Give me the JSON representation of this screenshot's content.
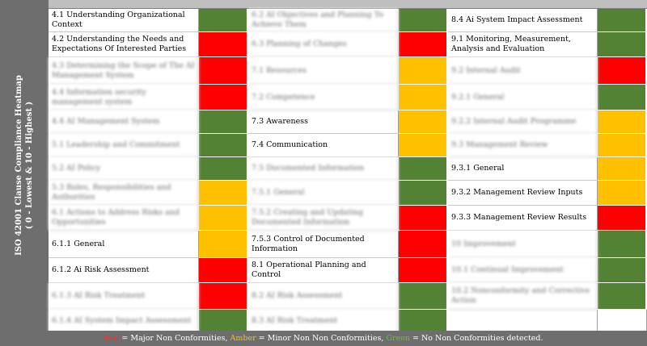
{
  "sidebar": {
    "title_line1": "ISO 42001 Clause Compliance Heatmap",
    "title_line2": "( 0 - Lowest & 10 - Highest )"
  },
  "colors": {
    "green": "#548235",
    "red": "#ff0000",
    "amber": "#ffc000",
    "header_gray": "#6e6e6e"
  },
  "columns": [
    {
      "items": [
        {
          "label": "4.1 Understanding Organizational Context",
          "status": "green",
          "blurred": false
        },
        {
          "label": "4.2 Understanding the Needs and Expectations Of Interested Parties",
          "status": "red",
          "blurred": false
        },
        {
          "label": "4.3 Determining the Scope of The AI Management System",
          "status": "red",
          "blurred": true
        },
        {
          "label": "4.4 Information security management system",
          "status": "red",
          "blurred": true
        },
        {
          "label": "4.4 AI Management System",
          "status": "green",
          "blurred": true
        },
        {
          "label": "5.1 Leadership and Commitment",
          "status": "green",
          "blurred": true
        },
        {
          "label": "5.2 AI Policy",
          "status": "green",
          "blurred": true
        },
        {
          "label": "5.3 Roles, Responsibilities and Authorities",
          "status": "amber",
          "blurred": true
        },
        {
          "label": "6.1 Actions to Address Risks and Opportunities",
          "status": "amber",
          "blurred": true
        },
        {
          "label": "6.1.1 General",
          "status": "amber",
          "blurred": false
        },
        {
          "label": "6.1.2 Ai Risk Assessment",
          "status": "red",
          "blurred": false
        },
        {
          "label": "6.1.3 AI Risk Treatment",
          "status": "red",
          "blurred": true
        },
        {
          "label": "6.1.4 AI System Impact Assessment",
          "status": "green",
          "blurred": true
        }
      ]
    },
    {
      "items": [
        {
          "label": "6.2 AI Objectives and Planning To Achieve Them",
          "status": "green",
          "blurred": true
        },
        {
          "label": "6.3 Planning of Changes",
          "status": "red",
          "blurred": true
        },
        {
          "label": "7.1 Resources",
          "status": "amber",
          "blurred": true
        },
        {
          "label": "7.2 Competence",
          "status": "amber",
          "blurred": true
        },
        {
          "label": "7.3 Awareness",
          "status": "amber",
          "blurred": false
        },
        {
          "label": "7.4 Communication",
          "status": "amber",
          "blurred": false
        },
        {
          "label": "7.5 Documented Information",
          "status": "green",
          "blurred": true
        },
        {
          "label": "7.5.1 General",
          "status": "green",
          "blurred": true
        },
        {
          "label": "7.5.2 Creating and Updating Documented Information",
          "status": "red",
          "blurred": true
        },
        {
          "label": "7.5.3 Control of Documented Information",
          "status": "red",
          "blurred": false
        },
        {
          "label": "8.1 Operational Planning and Control",
          "status": "red",
          "blurred": false
        },
        {
          "label": "8.2 AI Risk Assessment",
          "status": "green",
          "blurred": true
        },
        {
          "label": "8.3 AI Risk Treatment",
          "status": "green",
          "blurred": true
        }
      ]
    },
    {
      "items": [
        {
          "label": "8.4 Ai System Impact Assessment",
          "status": "green",
          "blurred": false
        },
        {
          "label": "9.1 Monitoring, Measurement, Analysis and Evaluation",
          "status": "green",
          "blurred": false
        },
        {
          "label": "9.2 Internal Audit",
          "status": "red",
          "blurred": true
        },
        {
          "label": "9.2.1 General",
          "status": "green",
          "blurred": true
        },
        {
          "label": "9.2.2 Internal Audit Programme",
          "status": "amber",
          "blurred": true
        },
        {
          "label": "9.3 Management Review",
          "status": "amber",
          "blurred": true
        },
        {
          "label": "9.3.1 General",
          "status": "amber",
          "blurred": false
        },
        {
          "label": "9.3.2 Management Review Inputs",
          "status": "amber",
          "blurred": false
        },
        {
          "label": "9.3.3 Management Review Results",
          "status": "red",
          "blurred": false
        },
        {
          "label": "10 Improvement",
          "status": "green",
          "blurred": true
        },
        {
          "label": "10.1 Continual Improvement",
          "status": "green",
          "blurred": true
        },
        {
          "label": "10.2 Nonconformity and Corrective Action",
          "status": "green",
          "blurred": true
        },
        {
          "label": "",
          "status": "none",
          "blurred": false
        }
      ]
    }
  ],
  "footer": {
    "red_word": "Red",
    "red_text": " = Major Non Conformities, ",
    "amber_word": "Amber",
    "amber_text": " = Minor Non Non Conformities, ",
    "green_word": "Green",
    "green_text": " = No Non Conformities detected."
  }
}
